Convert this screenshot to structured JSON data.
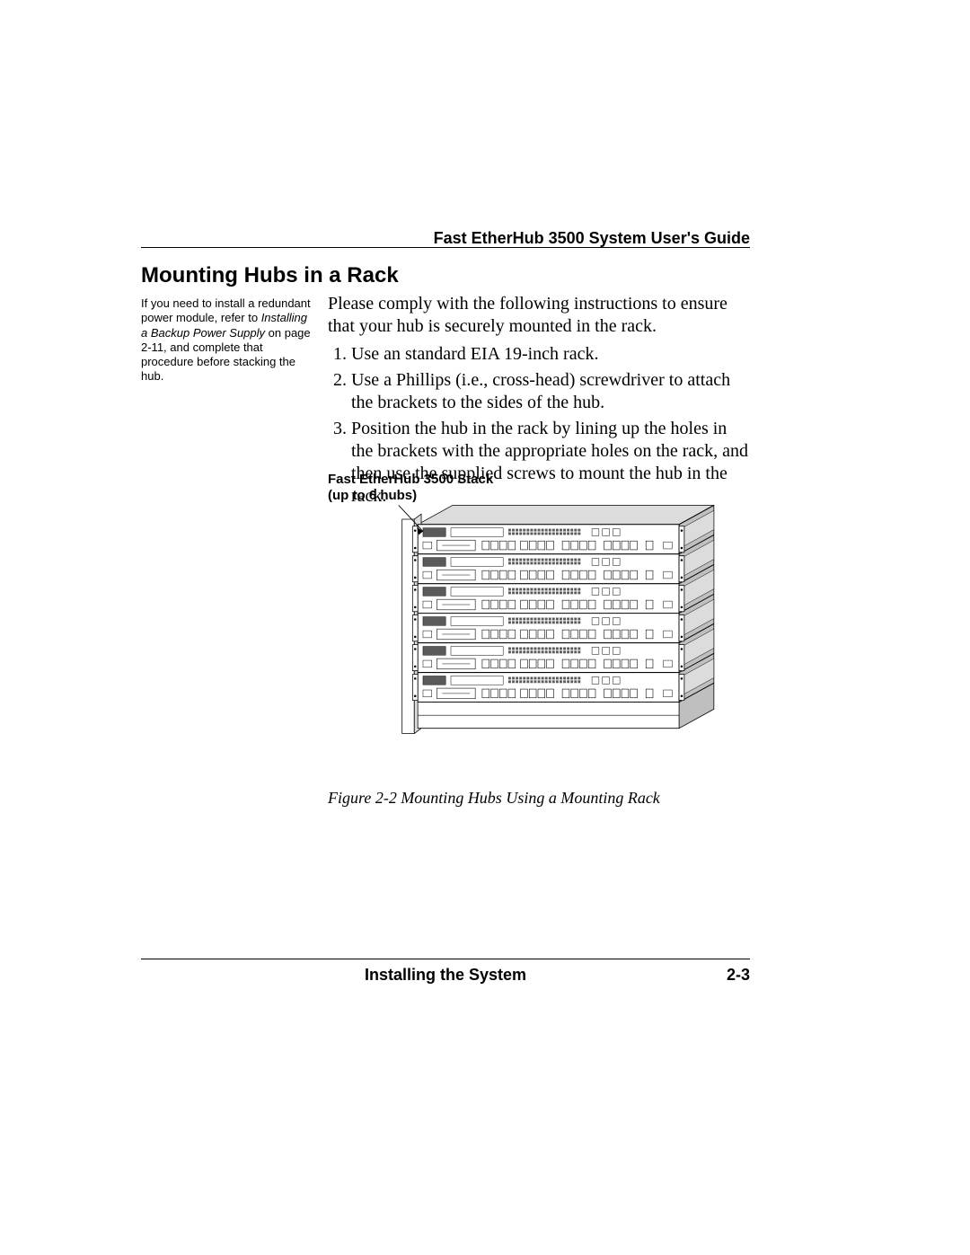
{
  "header": {
    "title": "Fast EtherHub 3500 System User's Guide"
  },
  "section": {
    "title": "Mounting Hubs in a Rack"
  },
  "sidebar": {
    "note_part1": "If you need to install a redundant power module, refer to ",
    "note_italic": "Installing a Backup Power Supply",
    "note_part2": " on page 2-11, and complete that procedure before stacking the hub."
  },
  "body": {
    "intro": "Please comply with the following instructions to ensure that your hub is securely mounted in the rack.",
    "steps": [
      "Use an standard EIA 19-inch rack.",
      "Use a Phillips (i.e., cross-head) screwdriver to attach the brackets to the sides of the hub.",
      "Position the hub in the rack by lining up the holes in the brackets with the appropriate holes on the rack, and then use the supplied screws to mount the hub in the rack."
    ]
  },
  "figure": {
    "label_line1": "Fast EtherHub 3500 Stack",
    "label_line2": "(up to 6 hubs)",
    "caption": "Figure 2-2  Mounting Hubs Using a Mounting Rack",
    "stroke_color": "#000000",
    "fill_light": "#ffffff",
    "fill_shade": "#dcdcdc",
    "fill_dark": "#5a5a5a",
    "fill_mid": "#bfbfbf",
    "hub_count": 6
  },
  "footer": {
    "chapter": "Installing the System",
    "page_number": "2-3"
  }
}
